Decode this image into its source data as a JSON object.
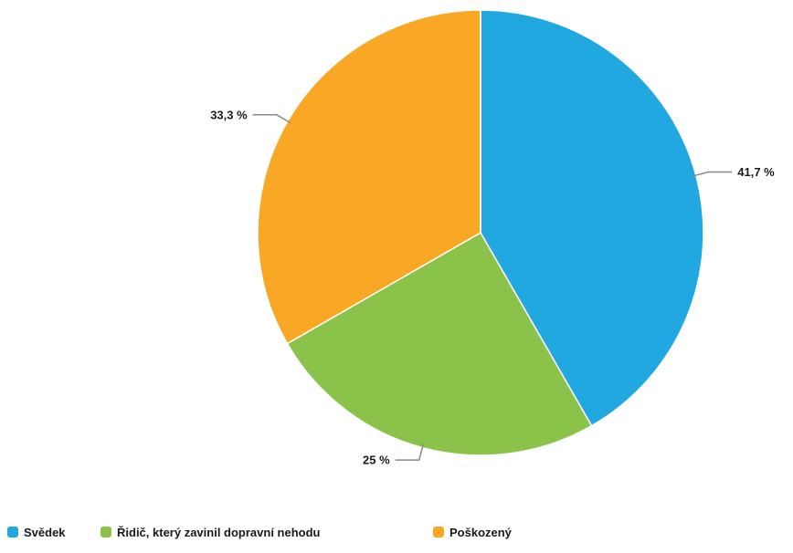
{
  "chart_data": {
    "type": "pie",
    "title": "",
    "slices": [
      {
        "name": "Svědek",
        "value": 41.7,
        "label": "41,7 %",
        "color": "#22a8e0"
      },
      {
        "name": "Řidič, který zavinil dopravní nehodu",
        "value": 25,
        "label": "25 %",
        "color": "#8bc34a"
      },
      {
        "name": "Poškozený",
        "value": 33.3,
        "label": "33,3 %",
        "color": "#f9a826"
      }
    ],
    "legend_position": "bottom-left",
    "start_angle_deg": 0,
    "direction": "clockwise"
  }
}
